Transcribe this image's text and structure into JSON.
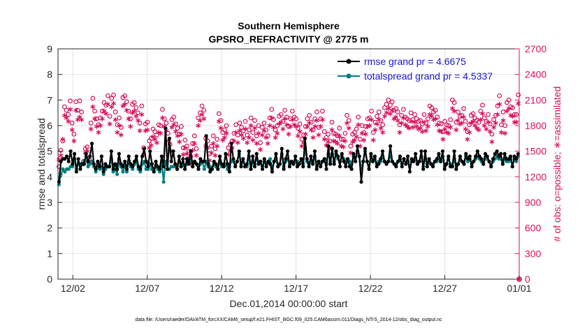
{
  "chart_data": {
    "type": "line",
    "title": "Southern Hemisphere",
    "subtitle": "GPSRO_REFRACTIVITY @ 2775 m",
    "xlabel": "Dec.01,2014 00:00:00 start",
    "ylabel": "rmse and totalspread",
    "ylabel_right": "# of obs: o=possible; ∗=assimilated",
    "xlim": [
      0,
      31
    ],
    "ylim": [
      0,
      9
    ],
    "ylim_right": [
      0,
      2700
    ],
    "x_ticks": [
      {
        "x": 1,
        "label": "12/02"
      },
      {
        "x": 6,
        "label": "12/07"
      },
      {
        "x": 11,
        "label": "12/12"
      },
      {
        "x": 16,
        "label": "12/17"
      },
      {
        "x": 21,
        "label": "12/22"
      },
      {
        "x": 26,
        "label": "12/27"
      },
      {
        "x": 31,
        "label": "01/01"
      }
    ],
    "y_ticks": [
      "0",
      "1",
      "2",
      "3",
      "4",
      "5",
      "6",
      "7",
      "8",
      "9"
    ],
    "y_ticks_right": [
      "0",
      "300",
      "600",
      "900",
      "1200",
      "1500",
      "1800",
      "2100",
      "2400",
      "2700"
    ],
    "legend_position": "top-right",
    "footnote": "data file: /Users/raeder/DAI/ATM_forcXX/CAM6_setup/f.e21.FHIST_BGC.f09_025.CAM6assim.011/Diags_NTrS_2014-12/obs_diag_output.nc",
    "colors": {
      "rmse": "#000000",
      "totalspread": "#008080",
      "obs": "#d6115a",
      "legend_text": "#1515d6",
      "grid": "#e2e2e2"
    },
    "series": [
      {
        "name": "rmse grand pr = 4.6675",
        "axis": "left",
        "marker": "filled-circle",
        "values": [
          3.8,
          4.6,
          4.7,
          4.7,
          4.8,
          4.6,
          5.0,
          4.5,
          4.9,
          4.2,
          4.7,
          4.3,
          4.5,
          4.5,
          4.9,
          4.6,
          4.8,
          5.3,
          4.5,
          4.3,
          4.6,
          4.4,
          4.8,
          4.2,
          4.5,
          4.4,
          4.4,
          5.0,
          4.3,
          4.5,
          4.3,
          4.9,
          4.5,
          4.4,
          4.6,
          4.3,
          4.8,
          4.5,
          4.4,
          4.6,
          4.8,
          4.4,
          4.3,
          4.8,
          5.1,
          4.6,
          4.4,
          5.0,
          4.5,
          4.2,
          4.6,
          4.4,
          4.3,
          4.8,
          4.4,
          5.9,
          4.3,
          5.5,
          4.6,
          5.0,
          4.5,
          4.3,
          4.8,
          4.4,
          4.7,
          4.3,
          4.7,
          4.5,
          5.0,
          4.4,
          4.6,
          4.5,
          4.3,
          4.7,
          4.6,
          4.6,
          5.6,
          4.5,
          4.2,
          4.3,
          4.6,
          4.5,
          4.3,
          4.8,
          4.5,
          4.4,
          4.9,
          4.5,
          4.2,
          5.3,
          4.7,
          4.4,
          4.6,
          5.0,
          4.4,
          4.7,
          4.4,
          4.5,
          5.0,
          4.3,
          4.8,
          4.4,
          4.9,
          4.5,
          4.6,
          4.3,
          4.7,
          4.4,
          4.6,
          4.5,
          4.2,
          4.6,
          4.9,
          4.4,
          4.5,
          5.1,
          4.3,
          4.7,
          5.0,
          4.4,
          4.6,
          4.5,
          4.8,
          4.4,
          4.5,
          4.7,
          4.4,
          5.5,
          4.7,
          4.4,
          4.8,
          4.5,
          5.0,
          4.3,
          4.6,
          4.4,
          4.6,
          4.7,
          4.3,
          5.2,
          4.5,
          5.1,
          4.5,
          5.0,
          4.8,
          4.4,
          4.9,
          4.6,
          4.4,
          4.7,
          4.4,
          4.3,
          4.9,
          4.6,
          5.2,
          4.8,
          3.8,
          4.6,
          5.1,
          4.6,
          4.3,
          4.9,
          4.6,
          4.8,
          4.4,
          4.5,
          4.7,
          5.0,
          4.6,
          4.5,
          4.6,
          5.2,
          4.6,
          4.5,
          4.4,
          4.6,
          4.8,
          4.4,
          4.7,
          4.5,
          4.8,
          4.2,
          4.7,
          4.6,
          4.9,
          4.5,
          4.6,
          5.0,
          4.3,
          5.0,
          4.4,
          4.7,
          4.5,
          4.4,
          4.6,
          4.7,
          4.9,
          4.6,
          5.0,
          4.3,
          4.5,
          4.8,
          4.4,
          4.4,
          5.0,
          4.3,
          4.5,
          4.8,
          4.6,
          4.5,
          4.9,
          4.7,
          4.8,
          4.4,
          4.6,
          4.8,
          5.0,
          4.8,
          4.7,
          4.5,
          4.9,
          4.8,
          4.6,
          4.4,
          4.7,
          4.9,
          5.0,
          4.8,
          4.9,
          4.5,
          4.9,
          4.7,
          4.7,
          4.8,
          4.4,
          4.8,
          4.7,
          4.9
        ]
      },
      {
        "name": "totalspread grand pr = 4.5337",
        "axis": "left",
        "marker": "filled-circle",
        "values": [
          3.7,
          4.1,
          4.3,
          4.2,
          4.3,
          4.3,
          4.4,
          4.4,
          4.7,
          4.3,
          4.5,
          4.5,
          4.5,
          4.6,
          4.8,
          4.4,
          4.5,
          4.6,
          4.4,
          4.2,
          4.4,
          4.3,
          4.4,
          4.1,
          4.3,
          4.4,
          4.4,
          4.7,
          4.2,
          4.3,
          4.1,
          4.7,
          4.4,
          4.2,
          4.4,
          4.2,
          4.6,
          4.4,
          4.3,
          4.5,
          4.6,
          4.3,
          4.2,
          4.5,
          4.6,
          4.3,
          4.3,
          4.5,
          4.3,
          4.2,
          4.4,
          4.3,
          4.2,
          4.6,
          3.8,
          4.6,
          4.3,
          4.3,
          4.4,
          4.4,
          4.4,
          4.3,
          4.6,
          4.4,
          4.5,
          4.3,
          4.5,
          4.6,
          4.7,
          4.4,
          4.6,
          4.5,
          4.3,
          4.5,
          4.6,
          4.3,
          4.6,
          4.4,
          4.4,
          4.3,
          4.5,
          4.4,
          4.3,
          4.6,
          4.4,
          4.4,
          4.5,
          4.3,
          4.4,
          4.6,
          4.6,
          4.4,
          4.6,
          4.9,
          4.5,
          4.7,
          4.4,
          4.4,
          4.8,
          4.3,
          4.6,
          4.5,
          4.7,
          4.5,
          4.6,
          4.4,
          4.6,
          4.5,
          4.6,
          4.7,
          4.3,
          4.6,
          4.7,
          4.4,
          4.5,
          4.9,
          4.4,
          4.6,
          4.7,
          4.5,
          4.6,
          4.5,
          4.6,
          4.6,
          4.5,
          4.7,
          4.5,
          5.1,
          4.6,
          4.5,
          4.6,
          4.6,
          4.8,
          4.4,
          4.6,
          4.5,
          4.6,
          4.7,
          4.5,
          4.9,
          4.6,
          4.9,
          4.6,
          4.9,
          4.7,
          4.6,
          4.8,
          4.7,
          4.6,
          4.7,
          4.6,
          4.5,
          4.8,
          4.6,
          5.0,
          4.8,
          4.3,
          4.6,
          5.0,
          4.6,
          4.3,
          4.8,
          4.6,
          4.7,
          4.5,
          4.6,
          4.6,
          4.8,
          4.6,
          4.5,
          4.6,
          4.8,
          4.6,
          4.5,
          4.5,
          4.6,
          4.7,
          4.5,
          4.7,
          4.5,
          4.6,
          4.4,
          4.6,
          4.6,
          4.7,
          4.5,
          4.6,
          4.8,
          4.4,
          4.7,
          4.5,
          4.6,
          4.5,
          4.5,
          4.6,
          4.6,
          4.7,
          4.6,
          4.8,
          4.4,
          4.5,
          4.7,
          4.5,
          4.4,
          4.7,
          4.3,
          4.5,
          4.7,
          4.6,
          4.5,
          4.8,
          4.6,
          4.7,
          4.5,
          4.6,
          4.7,
          4.8,
          4.7,
          4.6,
          4.5,
          4.7,
          4.7,
          4.6,
          4.4,
          4.6,
          4.7,
          4.8,
          4.7,
          4.7,
          4.5,
          4.7,
          4.6,
          4.6,
          4.7,
          4.4,
          4.7,
          4.6,
          4.8
        ]
      },
      {
        "name": "obs possible",
        "axis": "right",
        "marker": "open-circle",
        "values": [
          1320,
          1510,
          1620,
          2020,
          1980,
          1930,
          2090,
          1830,
          1700,
          2080,
          1980,
          2090,
          1960,
          1380,
          1530,
          1550,
          1410,
          1830,
          2120,
          1970,
          1880,
          1810,
          1890,
          1970,
          2070,
          2040,
          2150,
          1910,
          2120,
          2160,
          1960,
          1810,
          1890,
          1780,
          2130,
          2150,
          2080,
          1970,
          1880,
          2050,
          2070,
          2010,
          1950,
          1830,
          2030,
          1540,
          1820,
          1840,
          1620,
          1650,
          1760,
          1730,
          1690,
          1810,
          1800,
          1990,
          1880,
          1830,
          1710,
          1580,
          1870,
          1900,
          1820,
          1770,
          1700,
          1790,
          1540,
          1630,
          1560,
          1500,
          1440,
          1590,
          1680,
          1530,
          1890,
          1950,
          2030,
          1980,
          1650,
          1620,
          1470,
          1560,
          1680,
          1530,
          1640,
          1940,
          1860,
          1720,
          1750,
          1800,
          1540,
          1580,
          1620,
          1710,
          1810,
          1690,
          1830,
          1780,
          1740,
          1850,
          1690,
          1750,
          1890,
          1720,
          1860,
          1680,
          1800,
          1600,
          1780,
          1830,
          1750,
          1680,
          1890,
          1990,
          1870,
          1750,
          1800,
          1910,
          1930,
          1850,
          1980,
          1900,
          1790,
          1880,
          1970,
          1900,
          1880,
          1770,
          1820,
          1640,
          1690,
          1790,
          1880,
          1920,
          1840,
          1750,
          1880,
          1960,
          1780,
          1880,
          1970,
          1730,
          1660,
          1700,
          1620,
          1840,
          1710,
          1700,
          1680,
          1770,
          1640,
          1640,
          1710,
          1920,
          1860,
          1560,
          1700,
          1720,
          1760,
          1900,
          1640,
          1800,
          1720,
          1790,
          1880,
          1890,
          1970,
          1720,
          1840,
          1910,
          1960,
          1860,
          1810,
          2010,
          2050,
          2100,
          2040,
          2080,
          1980,
          2000,
          1960,
          1810,
          1920,
          1990,
          1900,
          1880,
          1860,
          1950,
          1870,
          1930,
          1880,
          1850,
          1860,
          1820,
          1930,
          1830,
          1880,
          2030,
          2010,
          1960,
          1980,
          1900,
          1830,
          1820,
          1730,
          1850,
          1810,
          1800,
          1870,
          2100,
          2070,
          1840,
          1960,
          1910,
          1920,
          2000,
          1850,
          1730,
          1810,
          1920,
          1940,
          1890,
          1860,
          1840,
          1970,
          2040,
          1890,
          1850,
          1930,
          1820,
          1700,
          1870,
          1920,
          2030,
          2150,
          1810,
          1960,
          1800,
          2070,
          2100,
          2020,
          2010,
          1930,
          1930,
          2160
        ]
      },
      {
        "name": "obs assimilated",
        "axis": "right",
        "marker": "asterisk",
        "values": [
          1400,
          1450,
          1640,
          1920,
          1890,
          1850,
          1990,
          1750,
          1620,
          1980,
          1870,
          1900,
          1870,
          1350,
          1480,
          1500,
          1380,
          1760,
          2020,
          1880,
          1790,
          1720,
          1800,
          1880,
          1970,
          1940,
          2050,
          1820,
          2020,
          2060,
          1870,
          1720,
          1800,
          1690,
          2030,
          2050,
          1980,
          1880,
          1790,
          1950,
          1970,
          1910,
          1860,
          1740,
          1930,
          1460,
          1740,
          1750,
          1540,
          1570,
          1670,
          1640,
          1600,
          1720,
          1710,
          1890,
          1790,
          1740,
          1620,
          1500,
          1780,
          1810,
          1730,
          1680,
          1610,
          1700,
          1460,
          1540,
          1470,
          1420,
          1360,
          1510,
          1590,
          1450,
          1800,
          1860,
          1930,
          1880,
          1560,
          1540,
          1390,
          1480,
          1590,
          1450,
          1560,
          1850,
          1770,
          1630,
          1660,
          1710,
          1460,
          1500,
          1540,
          1620,
          1720,
          1600,
          1740,
          1690,
          1650,
          1760,
          1600,
          1660,
          1800,
          1630,
          1770,
          1590,
          1710,
          1520,
          1690,
          1740,
          1660,
          1590,
          1800,
          1890,
          1780,
          1660,
          1710,
          1820,
          1840,
          1760,
          1880,
          1810,
          1700,
          1790,
          1870,
          1810,
          1790,
          1680,
          1730,
          1560,
          1600,
          1700,
          1790,
          1830,
          1750,
          1660,
          1790,
          1860,
          1690,
          1790,
          1870,
          1640,
          1570,
          1610,
          1540,
          1750,
          1620,
          1610,
          1590,
          1680,
          1560,
          1550,
          1620,
          1830,
          1770,
          1480,
          1610,
          1630,
          1670,
          1810,
          1560,
          1710,
          1630,
          1700,
          1790,
          1800,
          1870,
          1630,
          1750,
          1820,
          1870,
          1770,
          1720,
          1910,
          1950,
          2000,
          1940,
          1980,
          1880,
          1900,
          1860,
          1720,
          1830,
          1890,
          1810,
          1790,
          1770,
          1850,
          1780,
          1840,
          1790,
          1760,
          1770,
          1730,
          1840,
          1740,
          1790,
          1930,
          1910,
          1870,
          1880,
          1810,
          1740,
          1730,
          1640,
          1760,
          1720,
          1710,
          1780,
          2000,
          1970,
          1750,
          1860,
          1820,
          1830,
          1900,
          1760,
          1640,
          1720,
          1830,
          1850,
          1800,
          1770,
          1750,
          1870,
          1940,
          1800,
          1760,
          1840,
          1730,
          1610,
          1780,
          1830,
          1930,
          2050,
          1720,
          1860,
          1710,
          1970,
          2000,
          1920,
          1910,
          1840,
          1840,
          2060
        ]
      }
    ],
    "extra_marks": [
      {
        "x": 31,
        "y_right": 0,
        "marker": "open-circle",
        "series": "obs possible"
      },
      {
        "x": 31,
        "y_right": 0,
        "marker": "asterisk",
        "series": "obs assimilated"
      }
    ]
  }
}
